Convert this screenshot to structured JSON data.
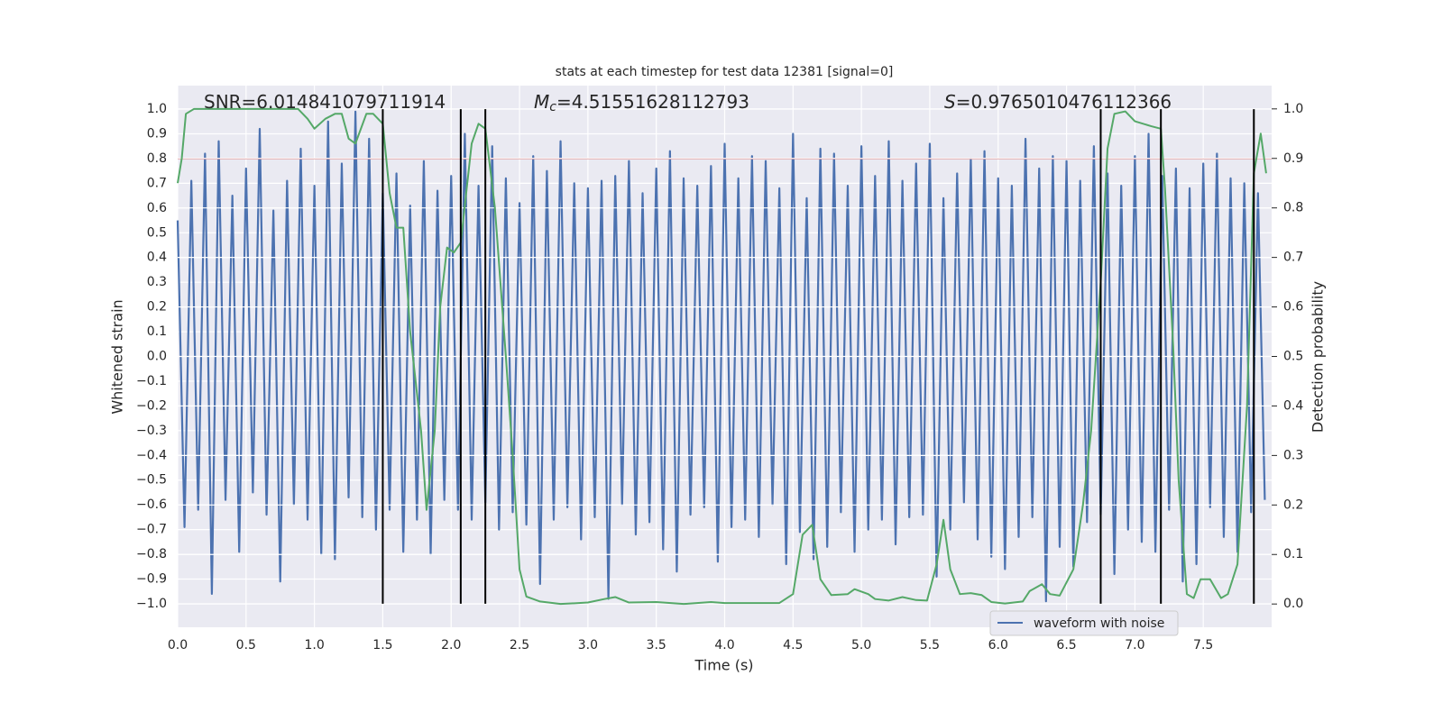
{
  "chart_data": {
    "type": "line",
    "title": "stats at each timestep for test data 12381 [signal=0]",
    "xlabel": "Time (s)",
    "ylabel": "Whitened strain",
    "y2label": "Detection probability",
    "xlim": [
      0,
      8
    ],
    "ylim": [
      -1.095,
      1.095
    ],
    "y2lim": [
      -0.047,
      1.047
    ],
    "xticks": [
      {
        "value": 0,
        "label": "0.0"
      },
      0.5,
      {
        "value": 1,
        "label": "1.0"
      },
      1.5,
      {
        "value": 2,
        "label": "2.0"
      },
      2.5,
      {
        "value": 3,
        "label": "3.0"
      },
      3.5,
      {
        "value": 4,
        "label": "4.0"
      },
      4.5,
      {
        "value": 5,
        "label": "5.0"
      },
      5.5,
      {
        "value": 6,
        "label": "6.0"
      },
      6.5,
      {
        "value": 7,
        "label": "7.0"
      },
      7.5
    ],
    "yticks": [
      {
        "value": -1,
        "label": "−1.0"
      },
      {
        "value": -0.9,
        "label": "−0.9"
      },
      {
        "value": -0.8,
        "label": "−0.8"
      },
      {
        "value": -0.7,
        "label": "−0.7"
      },
      {
        "value": -0.6,
        "label": "−0.6"
      },
      {
        "value": -0.5,
        "label": "−0.5"
      },
      {
        "value": -0.4,
        "label": "−0.4"
      },
      {
        "value": -0.3,
        "label": "−0.3"
      },
      {
        "value": -0.2,
        "label": "−0.2"
      },
      {
        "value": -0.1,
        "label": "−0.1"
      },
      {
        "value": 0,
        "label": "0.0"
      },
      0.1,
      0.2,
      0.3,
      0.4,
      0.5,
      0.6,
      0.7,
      0.8,
      0.9,
      {
        "value": 1,
        "label": "1.0"
      }
    ],
    "y2ticks": [
      {
        "value": 0,
        "label": "0.0"
      },
      0.1,
      0.2,
      0.3,
      0.4,
      0.5,
      0.6,
      0.7,
      0.8,
      0.9,
      {
        "value": 1,
        "label": "1.0"
      }
    ],
    "grid": true,
    "legend": "lower right",
    "series": [
      {
        "name": "waveform with noise",
        "color": "#4c72b0",
        "x": [
          0,
          0.05,
          0.1,
          0.15,
          0.2,
          0.25,
          0.3,
          0.35,
          0.4,
          0.45,
          0.5,
          0.55,
          0.6,
          0.65,
          0.7,
          0.75,
          0.8,
          0.85,
          0.9,
          0.95,
          1,
          1.05,
          1.1,
          1.15,
          1.2,
          1.25,
          1.3,
          1.35,
          1.4,
          1.45,
          1.5,
          1.55,
          1.6,
          1.65,
          1.7,
          1.75,
          1.8,
          1.85,
          1.9,
          1.95,
          2,
          2.05,
          2.1,
          2.15,
          2.2,
          2.25,
          2.3,
          2.35,
          2.4,
          2.45,
          2.5,
          2.55,
          2.6,
          2.65,
          2.7,
          2.75,
          2.8,
          2.85,
          2.9,
          2.95,
          3,
          3.05,
          3.1,
          3.15,
          3.2,
          3.25,
          3.3,
          3.35,
          3.4,
          3.45,
          3.5,
          3.55,
          3.6,
          3.65,
          3.7,
          3.75,
          3.8,
          3.85,
          3.9,
          3.95,
          4,
          4.05,
          4.1,
          4.15,
          4.2,
          4.25,
          4.3,
          4.35,
          4.4,
          4.45,
          4.5,
          4.55,
          4.6,
          4.65,
          4.7,
          4.75,
          4.8,
          4.85,
          4.9,
          4.95,
          5,
          5.05,
          5.1,
          5.15,
          5.2,
          5.25,
          5.3,
          5.35,
          5.4,
          5.45,
          5.5,
          5.55,
          5.6,
          5.65,
          5.7,
          5.75,
          5.8,
          5.85,
          5.9,
          5.95,
          6,
          6.05,
          6.1,
          6.15,
          6.2,
          6.25,
          6.3,
          6.35,
          6.4,
          6.45,
          6.5,
          6.55,
          6.6,
          6.65,
          6.7,
          6.75,
          6.8,
          6.85,
          6.9,
          6.95,
          7,
          7.05,
          7.1,
          7.15,
          7.2,
          7.25,
          7.3,
          7.35,
          7.4,
          7.45,
          7.5,
          7.55,
          7.6,
          7.65,
          7.7,
          7.75,
          7.8,
          7.85,
          7.9,
          7.95
        ],
        "values": [
          0.55,
          -0.69,
          0.71,
          -0.62,
          0.82,
          -0.96,
          0.87,
          -0.58,
          0.65,
          -0.79,
          0.76,
          -0.55,
          0.92,
          -0.64,
          0.59,
          -0.91,
          0.71,
          -0.6,
          0.84,
          -0.66,
          0.69,
          -0.8,
          0.95,
          -0.82,
          0.78,
          -0.57,
          0.99,
          -0.65,
          0.88,
          -0.7,
          0.66,
          -0.62,
          0.74,
          -0.79,
          0.61,
          -0.66,
          0.79,
          -0.8,
          0.67,
          -0.58,
          0.73,
          -0.62,
          0.9,
          -0.66,
          0.69,
          -0.59,
          0.85,
          -0.7,
          0.72,
          -0.63,
          0.62,
          -0.68,
          0.81,
          -0.92,
          0.75,
          -0.66,
          0.87,
          -0.61,
          0.7,
          -0.74,
          0.68,
          -0.65,
          0.71,
          -0.98,
          0.73,
          -0.6,
          0.79,
          -0.72,
          0.66,
          -0.67,
          0.76,
          -0.78,
          0.83,
          -0.87,
          0.72,
          -0.64,
          0.69,
          -0.61,
          0.77,
          -0.83,
          0.86,
          -0.69,
          0.72,
          -0.66,
          0.81,
          -0.73,
          0.79,
          -0.6,
          0.68,
          -0.84,
          0.9,
          -0.71,
          0.64,
          -0.82,
          0.84,
          -0.77,
          0.82,
          -0.63,
          0.69,
          -0.79,
          0.85,
          -0.7,
          0.73,
          -0.66,
          0.87,
          -0.76,
          0.71,
          -0.65,
          0.78,
          -0.64,
          0.86,
          -0.89,
          0.64,
          -0.7,
          0.74,
          -0.59,
          0.8,
          -0.74,
          0.83,
          -0.81,
          0.72,
          -0.86,
          0.69,
          -0.73,
          0.88,
          -0.65,
          0.76,
          -0.99,
          0.81,
          -0.77,
          0.79,
          -0.85,
          0.71,
          -0.67,
          0.85,
          -0.64,
          0.74,
          -0.88,
          0.69,
          -0.7,
          0.81,
          -0.75,
          0.9,
          -0.79,
          0.73,
          -0.62,
          0.76,
          -0.91,
          0.68,
          -0.84,
          0.78,
          -0.61,
          0.82,
          -0.73,
          0.72,
          -0.79,
          0.7,
          -0.63,
          0.66,
          -0.58
        ]
      },
      {
        "color": "#55a868",
        "axis": "y2",
        "x": [
          0,
          0.03,
          0.06,
          0.12,
          0.2,
          0.88,
          0.95,
          1,
          1.08,
          1.15,
          1.2,
          1.25,
          1.3,
          1.38,
          1.43,
          1.5,
          1.55,
          1.6,
          1.65,
          1.7,
          1.78,
          1.82,
          1.88,
          1.92,
          1.97,
          2.02,
          2.07,
          2.15,
          2.2,
          2.25,
          2.32,
          2.4,
          2.45,
          2.5,
          2.55,
          2.65,
          2.8,
          3,
          3.12,
          3.2,
          3.3,
          3.5,
          3.7,
          3.9,
          4,
          4.2,
          4.4,
          4.5,
          4.57,
          4.64,
          4.7,
          4.78,
          4.9,
          4.95,
          5.05,
          5.1,
          5.2,
          5.3,
          5.4,
          5.48,
          5.55,
          5.6,
          5.65,
          5.72,
          5.8,
          5.88,
          5.95,
          6.05,
          6.18,
          6.23,
          6.32,
          6.38,
          6.45,
          6.55,
          6.62,
          6.68,
          6.75,
          6.8,
          6.85,
          6.93,
          7,
          7.12,
          7.19,
          7.22,
          7.28,
          7.32,
          7.38,
          7.43,
          7.48,
          7.55,
          7.63,
          7.68,
          7.75,
          7.82,
          7.87,
          7.92,
          7.96
        ],
        "values": [
          0.85,
          0.9,
          0.99,
          1,
          1,
          1,
          0.98,
          0.96,
          0.98,
          0.99,
          0.99,
          0.94,
          0.93,
          0.99,
          0.99,
          0.97,
          0.83,
          0.76,
          0.76,
          0.55,
          0.35,
          0.19,
          0.35,
          0.6,
          0.72,
          0.71,
          0.73,
          0.93,
          0.97,
          0.96,
          0.8,
          0.5,
          0.3,
          0.07,
          0.015,
          0.005,
          0,
          0.003,
          0.01,
          0.014,
          0.003,
          0.004,
          0,
          0.004,
          0.002,
          0.002,
          0.002,
          0.02,
          0.14,
          0.16,
          0.05,
          0.018,
          0.02,
          0.03,
          0.02,
          0.01,
          0.007,
          0.014,
          0.008,
          0.007,
          0.08,
          0.17,
          0.07,
          0.02,
          0.022,
          0.018,
          0.004,
          0.001,
          0.005,
          0.026,
          0.04,
          0.02,
          0.017,
          0.07,
          0.2,
          0.35,
          0.65,
          0.92,
          0.99,
          0.995,
          0.975,
          0.965,
          0.96,
          0.84,
          0.52,
          0.25,
          0.02,
          0.012,
          0.05,
          0.05,
          0.012,
          0.02,
          0.08,
          0.4,
          0.87,
          0.95,
          0.87
        ]
      }
    ],
    "hline": {
      "y": 0.8,
      "color": "#c44e52"
    },
    "vlines": {
      "x": [
        1.5,
        2.07,
        2.25,
        6.75,
        7.19,
        7.87
      ],
      "ymin": -1,
      "ymax": 1,
      "color": "#000000"
    },
    "annotations": [
      {
        "text": "SNR=6.014841079711914"
      },
      {
        "symbol": "M",
        "subscript": "c",
        "text": "=4.51551628112793"
      },
      {
        "symbol": "S",
        "text": "=0.9765010476112366"
      }
    ]
  }
}
